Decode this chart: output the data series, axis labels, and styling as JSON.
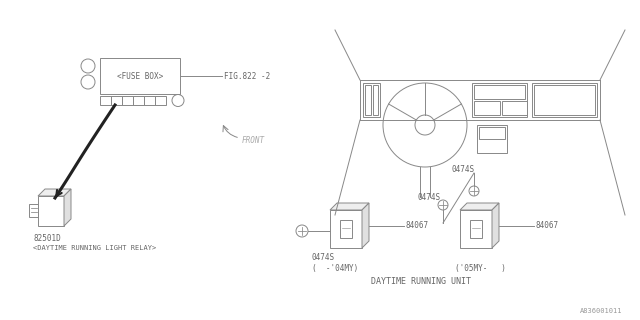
{
  "bg_color": "#ffffff",
  "line_color": "#888888",
  "text_color": "#666666",
  "part_number": "A836001011",
  "fuse_box_label": "<FUSE BOX>",
  "fuse_box_ref": "FIG.822 -2",
  "relay_part": "82501D",
  "relay_label": "<DAYTIME RUNNING LIGHT RELAY>",
  "unit_label": "DAYTIME RUNNING UNIT",
  "part_0474S": "0474S",
  "part_84067": "84067",
  "front_label": "FRONT",
  "early_label": "(  -'04MY)",
  "late_label": "('05MY-   )"
}
